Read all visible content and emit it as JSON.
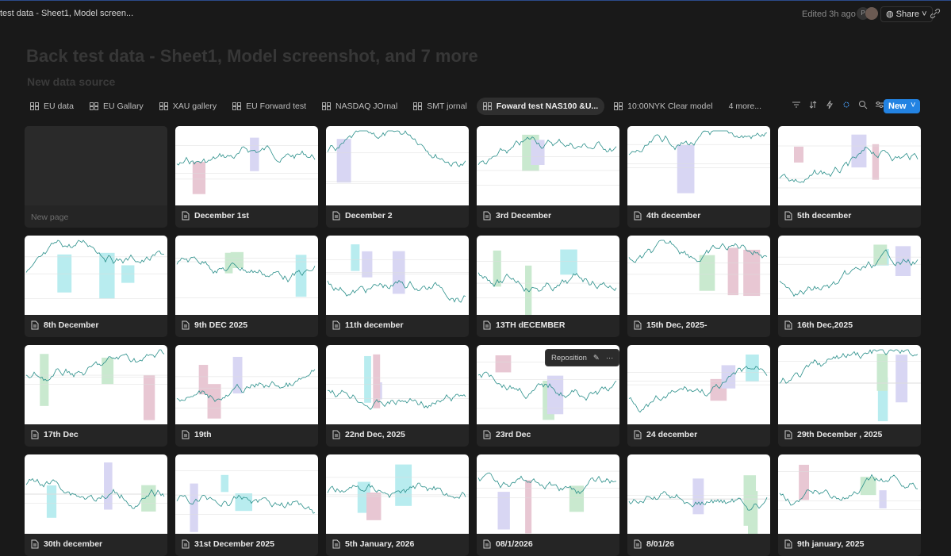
{
  "top_bar": {
    "breadcrumb": "test data - Sheet1, Model screen...",
    "edited": "Edited 3h ago",
    "avatar": "P",
    "share": "Share"
  },
  "header": {
    "title": "Back test data - Sheet1, Model screenshot, and 7 more",
    "subtitle": "New data source"
  },
  "tabs": [
    {
      "label": "EU data",
      "active": false
    },
    {
      "label": "EU Gallary",
      "active": false
    },
    {
      "label": "XAU gallery",
      "active": false
    },
    {
      "label": "EU Forward test",
      "active": false
    },
    {
      "label": "NASDAQ JOrnal",
      "active": false
    },
    {
      "label": "SMT jornal",
      "active": false
    },
    {
      "label": "Foward test NAS100 &U...",
      "active": true
    },
    {
      "label": "10:00NYK Clear model",
      "active": false
    }
  ],
  "more_tabs": "4 more...",
  "new_button": "New",
  "tooltip": "Reposition",
  "cards": [
    {
      "title": "New page",
      "empty": true
    },
    {
      "title": "December 1st",
      "empty": false
    },
    {
      "title": "December 2",
      "empty": false
    },
    {
      "title": "3rd December",
      "empty": false
    },
    {
      "title": "4th december",
      "empty": false
    },
    {
      "title": "5th december",
      "empty": false
    },
    {
      "title": "8th December",
      "empty": false
    },
    {
      "title": "9th DEC 2025",
      "empty": false
    },
    {
      "title": "11th december",
      "empty": false
    },
    {
      "title": "13TH dECEMBER",
      "empty": false
    },
    {
      "title": "15th Dec, 2025-",
      "empty": false
    },
    {
      "title": "16th Dec,2025",
      "empty": false
    },
    {
      "title": "17th Dec",
      "empty": false
    },
    {
      "title": "19th",
      "empty": false
    },
    {
      "title": "22nd Dec, 2025",
      "empty": false
    },
    {
      "title": "23rd Dec",
      "empty": false
    },
    {
      "title": "24 december",
      "empty": false
    },
    {
      "title": "29th December , 2025",
      "empty": false
    },
    {
      "title": "30th december",
      "empty": false
    },
    {
      "title": "31st December 2025",
      "empty": false
    },
    {
      "title": "5th January, 2026",
      "empty": false
    },
    {
      "title": "08/1/2026",
      "empty": false
    },
    {
      "title": "8/01/26",
      "empty": false
    },
    {
      "title": "9th january, 2025",
      "empty": false
    }
  ]
}
